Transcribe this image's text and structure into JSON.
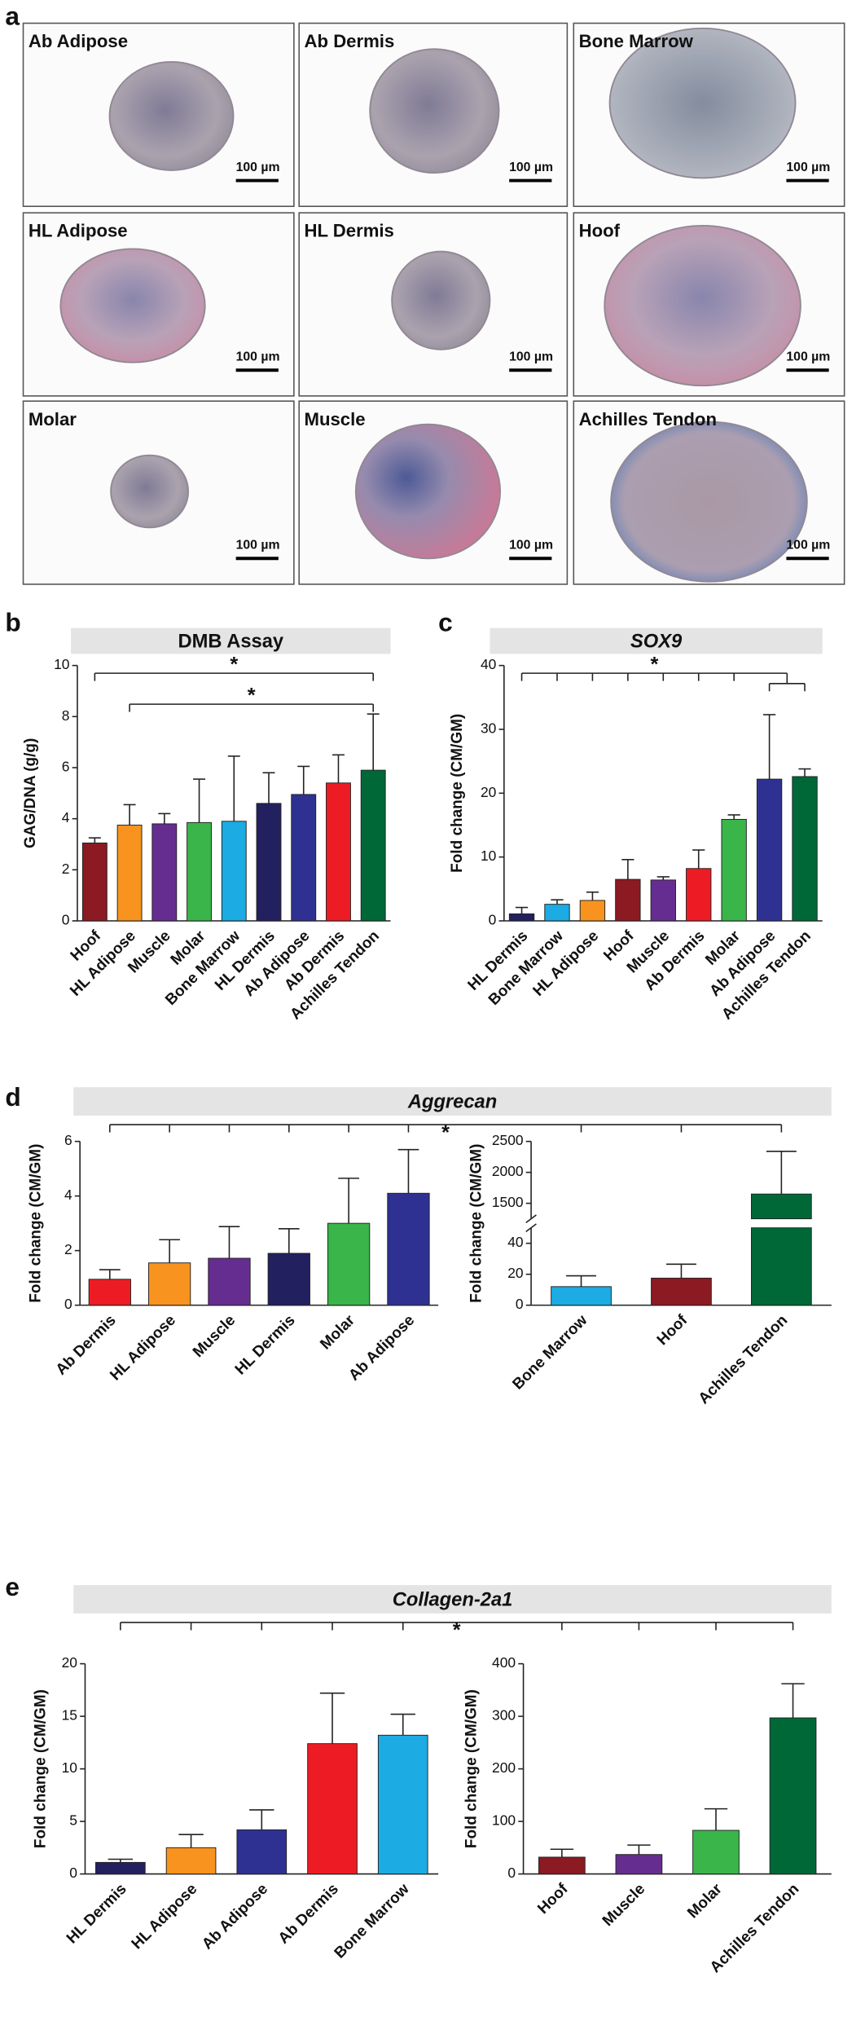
{
  "panel_labels": [
    "a",
    "b",
    "c",
    "d",
    "e"
  ],
  "micrographs": {
    "tiles": [
      "Ab Adipose",
      "Ab Dermis",
      "Bone Marrow",
      "HL Adipose",
      "HL Dermis",
      "Hoof",
      "Molar",
      "Muscle",
      "Achilles Tendon"
    ],
    "scale_bar": "100 µm"
  },
  "chart_data": [
    {
      "type": "bar",
      "title": "DMB Assay",
      "ylabel": "GAG/DNA (g/g)",
      "categories": [
        "Hoof",
        "HL Adipose",
        "Muscle",
        "Molar",
        "Bone Marrow",
        "HL Dermis",
        "Ab Adipose",
        "Ab Dermis",
        "Achilles Tendon"
      ],
      "values": [
        3.05,
        3.75,
        3.8,
        3.85,
        3.9,
        4.6,
        4.95,
        5.4,
        5.9
      ],
      "errors": [
        0.2,
        0.8,
        0.4,
        1.7,
        2.55,
        1.2,
        1.1,
        1.1,
        2.2
      ],
      "colors": [
        "#8b1a22",
        "#f7931e",
        "#662d91",
        "#39b54a",
        "#1cabe2",
        "#22205f",
        "#2e3192",
        "#ed1c24",
        "#006837"
      ],
      "ylim": [
        0,
        10
      ],
      "yticks": [
        0,
        2,
        4,
        6,
        8,
        10
      ],
      "annotations": [
        "*",
        "*"
      ]
    },
    {
      "type": "bar",
      "title": "SOX9",
      "title_italic": true,
      "ylabel": "Fold change (CM/GM)",
      "categories": [
        "HL Dermis",
        "Bone Marrow",
        "HL Adipose",
        "Hoof",
        "Muscle",
        "Ab Dermis",
        "Molar",
        "Ab Adipose",
        "Achilles Tendon"
      ],
      "values": [
        1.1,
        2.6,
        3.2,
        6.5,
        6.4,
        8.2,
        15.9,
        22.2,
        22.6
      ],
      "errors": [
        1.0,
        0.7,
        1.3,
        3.1,
        0.5,
        2.9,
        0.7,
        10.1,
        1.2
      ],
      "colors": [
        "#22205f",
        "#1cabe2",
        "#f7931e",
        "#8b1a22",
        "#662d91",
        "#ed1c24",
        "#39b54a",
        "#2e3192",
        "#006837"
      ],
      "ylim": [
        0,
        40
      ],
      "yticks": [
        0,
        10,
        20,
        30,
        40
      ],
      "annotations": [
        "*"
      ]
    },
    {
      "type": "bar",
      "title": "Aggrecan",
      "title_italic": true,
      "ylabel": "Fold change (CM/GM)",
      "categories": [
        "Ab Dermis",
        "HL Adipose",
        "Muscle",
        "HL Dermis",
        "Molar",
        "Ab Adipose"
      ],
      "values": [
        0.95,
        1.55,
        1.72,
        1.9,
        3.0,
        4.1
      ],
      "errors": [
        0.35,
        0.85,
        1.16,
        0.9,
        1.65,
        1.6
      ],
      "colors": [
        "#ed1c24",
        "#f7931e",
        "#662d91",
        "#22205f",
        "#39b54a",
        "#2e3192"
      ],
      "ylim": [
        0,
        6
      ],
      "yticks": [
        0,
        2,
        4,
        6
      ],
      "annotations": [
        "*"
      ]
    },
    {
      "type": "bar",
      "ylabel": "Fold change (CM/GM)",
      "categories": [
        "Bone Marrow",
        "Hoof",
        "Achilles Tendon"
      ],
      "values": [
        12,
        17.5,
        1650
      ],
      "errors": [
        7,
        9,
        690
      ],
      "colors": [
        "#1cabe2",
        "#8b1a22",
        "#006837"
      ],
      "ylim": [
        0,
        2500
      ],
      "ybreak": [
        50,
        1250
      ],
      "yticks": [
        0,
        20,
        40,
        1500,
        2000,
        2500
      ]
    },
    {
      "type": "bar",
      "title": "Collagen-2a1",
      "title_italic": true,
      "ylabel": "Fold change (CM/GM)",
      "categories": [
        "HL Dermis",
        "HL Adipose",
        "Ab Adipose",
        "Ab Dermis",
        "Bone Marrow"
      ],
      "values": [
        1.1,
        2.5,
        4.2,
        12.4,
        13.2
      ],
      "errors": [
        0.3,
        1.25,
        1.9,
        4.8,
        2.0
      ],
      "colors": [
        "#22205f",
        "#f7931e",
        "#2e3192",
        "#ed1c24",
        "#1cabe2"
      ],
      "ylim": [
        0,
        20
      ],
      "yticks": [
        0,
        5,
        10,
        15,
        20
      ],
      "annotations": [
        "*"
      ]
    },
    {
      "type": "bar",
      "ylabel": "Fold change (CM/GM)",
      "categories": [
        "Hoof",
        "Muscle",
        "Molar",
        "Achilles Tendon"
      ],
      "values": [
        32,
        37,
        83,
        297
      ],
      "errors": [
        15,
        18,
        41,
        65
      ],
      "colors": [
        "#8b1a22",
        "#662d91",
        "#39b54a",
        "#006837"
      ],
      "ylim": [
        0,
        400
      ],
      "yticks": [
        0,
        100,
        200,
        300,
        400
      ]
    }
  ]
}
